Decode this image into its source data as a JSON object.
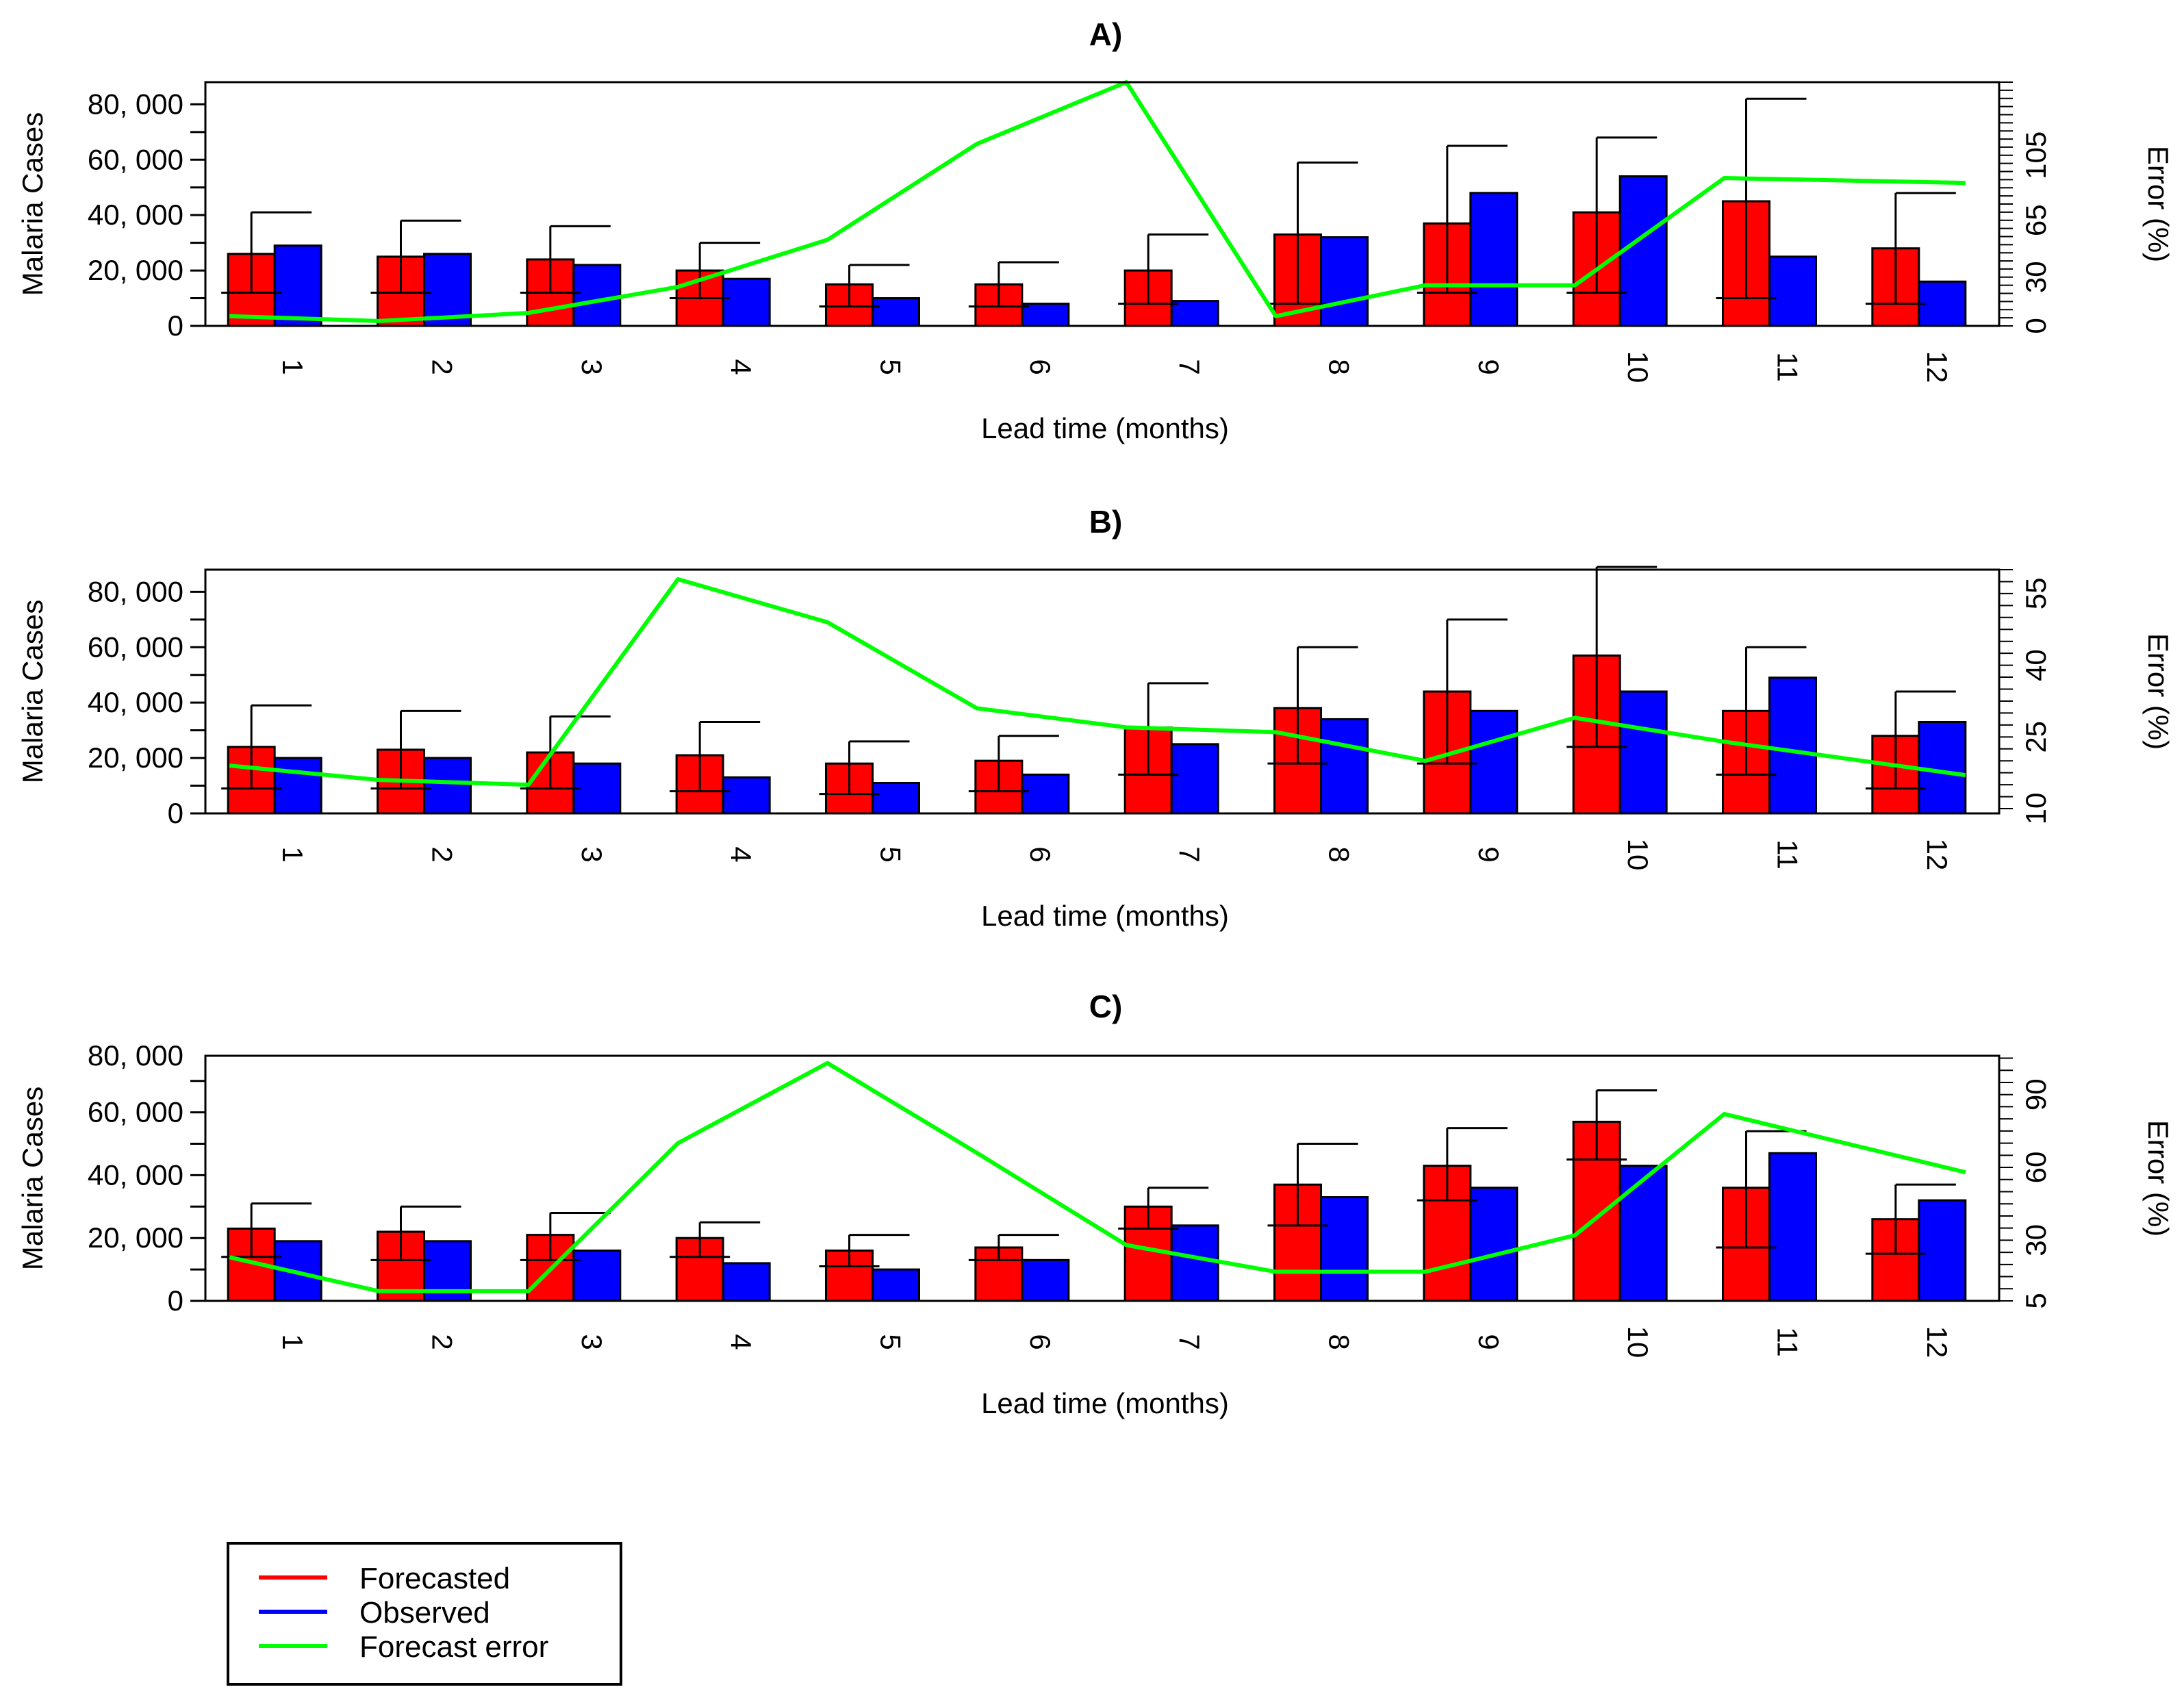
{
  "chart_data": [
    {
      "type": "bar",
      "title": "A)",
      "xlabel": "Lead time (months)",
      "ylabel": "Malaria Cases",
      "y2label": "Error (%)",
      "categories": [
        "1",
        "2",
        "3",
        "4",
        "5",
        "6",
        "7",
        "8",
        "9",
        "10",
        "11",
        "12"
      ],
      "ylim": [
        0,
        88000
      ],
      "yticks": [
        0,
        20000,
        40000,
        60000,
        80000
      ],
      "ytick_labels": [
        "0",
        "20, 000",
        "40, 000",
        "60, 000",
        "80, 000"
      ],
      "y2lim": [
        0,
        150
      ],
      "y2ticks": [
        0,
        30,
        65,
        105
      ],
      "y2tick_labels": [
        "0",
        "30",
        "65",
        "105"
      ],
      "series": [
        {
          "name": "Forecasted",
          "color": "#ff0000",
          "values": [
            26000,
            25000,
            24000,
            20000,
            15000,
            15000,
            20000,
            33000,
            37000,
            41000,
            45000,
            28000
          ]
        },
        {
          "name": "Observed",
          "color": "#0000ff",
          "values": [
            29000,
            26000,
            22000,
            17000,
            10000,
            8000,
            9000,
            32000,
            48000,
            54000,
            25000,
            16000
          ]
        }
      ],
      "error_bars": {
        "lower": [
          12000,
          12000,
          12000,
          10000,
          7000,
          7000,
          8000,
          8000,
          12000,
          12000,
          10000,
          8000
        ],
        "upper": [
          41000,
          38000,
          36000,
          30000,
          22000,
          23000,
          33000,
          59000,
          65000,
          68000,
          82000,
          48000
        ]
      },
      "forecast_error": [
        6,
        3,
        8,
        24,
        53,
        112,
        150,
        6,
        25,
        25,
        91,
        88
      ]
    },
    {
      "type": "bar",
      "title": "B)",
      "xlabel": "Lead time (months)",
      "ylabel": "Malaria Cases",
      "y2label": "Error (%)",
      "categories": [
        "1",
        "2",
        "3",
        "4",
        "5",
        "6",
        "7",
        "8",
        "9",
        "10",
        "11",
        "12"
      ],
      "ylim": [
        0,
        88000
      ],
      "yticks": [
        0,
        20000,
        40000,
        60000,
        80000
      ],
      "ytick_labels": [
        "0",
        "20, 000",
        "40, 000",
        "60, 000",
        "80, 000"
      ],
      "y2lim": [
        9,
        60
      ],
      "y2ticks": [
        10,
        25,
        40,
        55
      ],
      "y2tick_labels": [
        "10",
        "25",
        "40",
        "55"
      ],
      "series": [
        {
          "name": "Forecasted",
          "color": "#ff0000",
          "values": [
            24000,
            23000,
            22000,
            21000,
            18000,
            19000,
            31000,
            38000,
            44000,
            57000,
            37000,
            28000
          ]
        },
        {
          "name": "Observed",
          "color": "#0000ff",
          "values": [
            20000,
            20000,
            18000,
            13000,
            11000,
            14000,
            25000,
            34000,
            37000,
            44000,
            49000,
            33000
          ]
        }
      ],
      "error_bars": {
        "lower": [
          9000,
          9000,
          9000,
          8000,
          7000,
          8000,
          14000,
          18000,
          18000,
          24000,
          14000,
          9000
        ],
        "upper": [
          39000,
          37000,
          35000,
          33000,
          26000,
          28000,
          47000,
          60000,
          70000,
          89000,
          60000,
          44000
        ]
      },
      "forecast_error": [
        19,
        16,
        15,
        58,
        49,
        31,
        27,
        26,
        20,
        29,
        24,
        17
      ]
    },
    {
      "type": "bar",
      "title": "C)",
      "xlabel": "Lead time (months)",
      "ylabel": "Malaria Cases",
      "y2label": "Error (%)",
      "categories": [
        "1",
        "2",
        "3",
        "4",
        "5",
        "6",
        "7",
        "8",
        "9",
        "10",
        "11",
        "12"
      ],
      "ylim": [
        0,
        78000
      ],
      "yticks": [
        0,
        20000,
        40000,
        60000,
        80000
      ],
      "ytick_labels": [
        "0",
        "20, 000",
        "40, 000",
        "60, 000",
        "80, 000"
      ],
      "y2lim": [
        5,
        106
      ],
      "y2ticks": [
        5,
        30,
        60,
        90
      ],
      "y2tick_labels": [
        "5",
        "30",
        "60",
        "90"
      ],
      "series": [
        {
          "name": "Forecasted",
          "color": "#ff0000",
          "values": [
            23000,
            22000,
            21000,
            20000,
            16000,
            17000,
            30000,
            37000,
            43000,
            57000,
            36000,
            26000
          ]
        },
        {
          "name": "Observed",
          "color": "#0000ff",
          "values": [
            19000,
            19000,
            16000,
            12000,
            10000,
            13000,
            24000,
            33000,
            36000,
            43000,
            47000,
            32000
          ]
        }
      ],
      "error_bars": {
        "lower": [
          14000,
          13000,
          13000,
          14000,
          11000,
          13000,
          23000,
          24000,
          32000,
          45000,
          17000,
          15000
        ],
        "upper": [
          31000,
          30000,
          28000,
          25000,
          21000,
          21000,
          36000,
          50000,
          55000,
          67000,
          54000,
          37000
        ]
      },
      "forecast_error": [
        23,
        9,
        9,
        70,
        103,
        66,
        28,
        17,
        17,
        32,
        82,
        58
      ]
    }
  ],
  "legend": {
    "items": [
      {
        "label": "Forecasted",
        "color": "#ff0000"
      },
      {
        "label": "Observed",
        "color": "#0000ff"
      },
      {
        "label": "Forecast error",
        "color": "#00ff00"
      }
    ]
  }
}
